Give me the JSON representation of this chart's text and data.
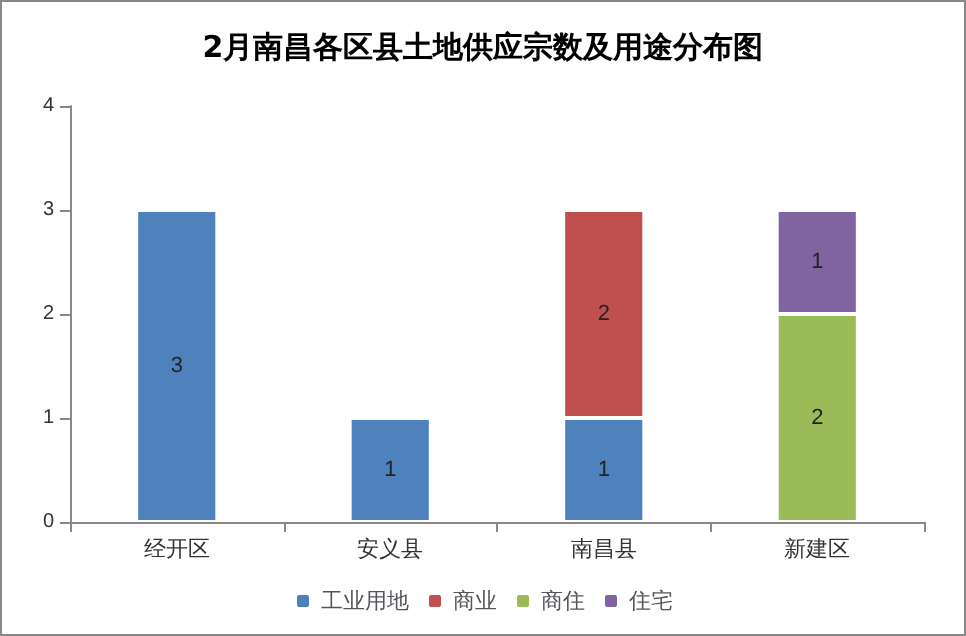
{
  "chart_data": {
    "type": "bar",
    "title": "2月南昌各区县土地供应宗数及用途分布图",
    "categories": [
      "经开区",
      "安义县",
      "南昌县",
      "新建区"
    ],
    "stacked": true,
    "series": [
      {
        "name": "工业用地",
        "color": "#4f81bd",
        "values": [
          3,
          1,
          1,
          null
        ]
      },
      {
        "name": "商业",
        "color": "#c0504d",
        "values": [
          null,
          null,
          2,
          null
        ]
      },
      {
        "name": "商住",
        "color": "#9bbb59",
        "values": [
          null,
          null,
          null,
          2
        ]
      },
      {
        "name": "住宅",
        "color": "#8064a2",
        "values": [
          null,
          null,
          null,
          1
        ]
      }
    ],
    "ylim": [
      0,
      4
    ],
    "yticks": [
      0,
      1,
      2,
      3,
      4
    ],
    "grid": false,
    "legend": "bottom",
    "data_labels": true
  }
}
